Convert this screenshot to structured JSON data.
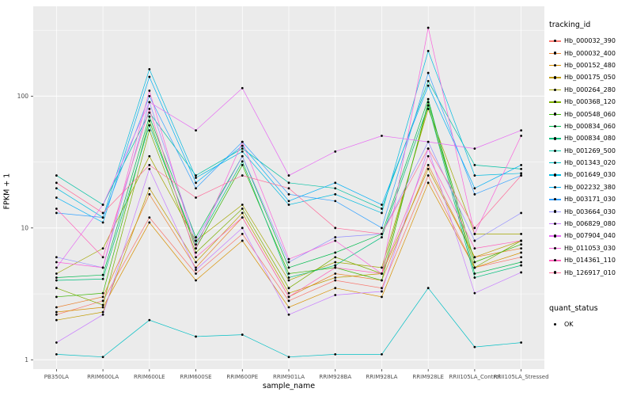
{
  "chart_data": {
    "type": "line",
    "title": "",
    "xlabel": "sample_name",
    "ylabel": "FPKM + 1",
    "y_scale": "log10",
    "y_ticks": [
      1,
      10,
      100
    ],
    "y_minor_ticks": [
      3.162,
      31.62,
      316.2
    ],
    "y_domain": [
      0.85,
      480
    ],
    "panel_bg": "#EBEBEB",
    "grid_color": "#FFFFFF",
    "point_color": "#000000",
    "tick_label_color": "#4D4D4D",
    "legend": {
      "title": "tracking_id",
      "position": "right"
    },
    "quant_legend": {
      "title": "quant_status",
      "items": [
        {
          "label": "OK",
          "marker": "point",
          "color": "#000000"
        }
      ]
    },
    "categories": [
      "PB350LA",
      "RRIM600LA",
      "RRIM600LE",
      "RRIM600SE",
      "RRIM600PE",
      "RRIM901LA",
      "RRIM928BA",
      "RRIM928LA",
      "RRIM928LE",
      "RRII105LA_Control",
      "RRII105LA_Stressed"
    ],
    "series": [
      {
        "name": "Hb_000032_390",
        "color": "#F8766D",
        "values": [
          2.2,
          2.8,
          12,
          4.5,
          9,
          2.8,
          4.0,
          3.5,
          25,
          5.0,
          6.0
        ]
      },
      {
        "name": "Hb_000032_400",
        "color": "#EA8331",
        "values": [
          2.5,
          3.0,
          18,
          5.0,
          12,
          3.0,
          4.5,
          4.0,
          30,
          6.0,
          7.0
        ]
      },
      {
        "name": "Hb_000152_480",
        "color": "#D89000",
        "values": [
          2.3,
          2.5,
          11,
          4.0,
          8,
          2.5,
          3.5,
          3.0,
          22,
          5.0,
          6.5
        ]
      },
      {
        "name": "Hb_000175_050",
        "color": "#C09B00",
        "values": [
          2.0,
          2.3,
          20,
          5.5,
          13,
          3.2,
          4.2,
          4.5,
          28,
          6.0,
          8.0
        ]
      },
      {
        "name": "Hb_000264_280",
        "color": "#A3A500",
        "values": [
          4.5,
          7.0,
          35,
          8.0,
          15,
          4.0,
          5.5,
          5.0,
          80,
          9.0,
          9.0
        ]
      },
      {
        "name": "Hb_000368_120",
        "color": "#7CAE00",
        "values": [
          3.5,
          2.6,
          55,
          6.5,
          14,
          3.5,
          6.0,
          4.5,
          85,
          5.0,
          8.0
        ]
      },
      {
        "name": "Hb_000548_060",
        "color": "#39B600",
        "values": [
          3.0,
          3.2,
          65,
          7.0,
          30,
          4.5,
          5.0,
          4.0,
          90,
          5.5,
          7.5
        ]
      },
      {
        "name": "Hb_000834_060",
        "color": "#00BB4E",
        "values": [
          4.2,
          4.4,
          70,
          8.5,
          35,
          5.0,
          6.5,
          9.0,
          95,
          4.5,
          5.5
        ]
      },
      {
        "name": "Hb_000834_080",
        "color": "#00BF7D",
        "values": [
          4.0,
          4.1,
          60,
          7.5,
          32,
          4.2,
          5.2,
          8.5,
          85,
          4.2,
          5.2
        ]
      },
      {
        "name": "Hb_001269_500",
        "color": "#00C1A3",
        "values": [
          25,
          15,
          75,
          25,
          40,
          22,
          20,
          14,
          130,
          30,
          28
        ]
      },
      {
        "name": "Hb_001343_020",
        "color": "#00BFC4",
        "values": [
          1.1,
          1.05,
          2.0,
          1.5,
          1.55,
          1.05,
          1.1,
          1.1,
          3.5,
          1.25,
          1.35
        ]
      },
      {
        "name": "Hb_001649_030",
        "color": "#00BAE0",
        "values": [
          20,
          12,
          160,
          24,
          38,
          15,
          18,
          13,
          220,
          25,
          26
        ]
      },
      {
        "name": "Hb_002232_380",
        "color": "#00B0F6",
        "values": [
          17,
          11,
          140,
          22,
          42,
          16,
          22,
          15,
          120,
          20,
          30
        ]
      },
      {
        "name": "Hb_003171_030",
        "color": "#35A2FF",
        "values": [
          13,
          12,
          100,
          20,
          45,
          18,
          16,
          10,
          150,
          18,
          25
        ]
      },
      {
        "name": "Hb_003664_030",
        "color": "#9590FF",
        "values": [
          6.0,
          5.0,
          90,
          8.0,
          35,
          5.5,
          8.5,
          9.0,
          45,
          8.0,
          13
        ]
      },
      {
        "name": "Hb_006829_080",
        "color": "#C77CFF",
        "values": [
          1.35,
          2.2,
          28,
          4.8,
          10,
          2.2,
          3.1,
          3.3,
          40,
          3.2,
          4.6
        ]
      },
      {
        "name": "Hb_007904_040",
        "color": "#E76BF3",
        "values": [
          5.0,
          15,
          90,
          55,
          115,
          25,
          38,
          50,
          45,
          40,
          55
        ]
      },
      {
        "name": "Hb_011053_030",
        "color": "#FA62DB",
        "values": [
          5.5,
          5.0,
          110,
          7.0,
          45,
          5.8,
          8.0,
          4.5,
          330,
          9.0,
          50
        ]
      },
      {
        "name": "Hb_014361_110",
        "color": "#FF62BC",
        "values": [
          14,
          6.0,
          80,
          6.0,
          12,
          3.0,
          5.0,
          4.5,
          35,
          7.0,
          8.0
        ]
      },
      {
        "name": "Hb_126917_010",
        "color": "#FF6A98",
        "values": [
          22,
          13,
          30,
          17,
          25,
          20,
          10,
          9.0,
          40,
          10,
          25
        ]
      }
    ]
  }
}
